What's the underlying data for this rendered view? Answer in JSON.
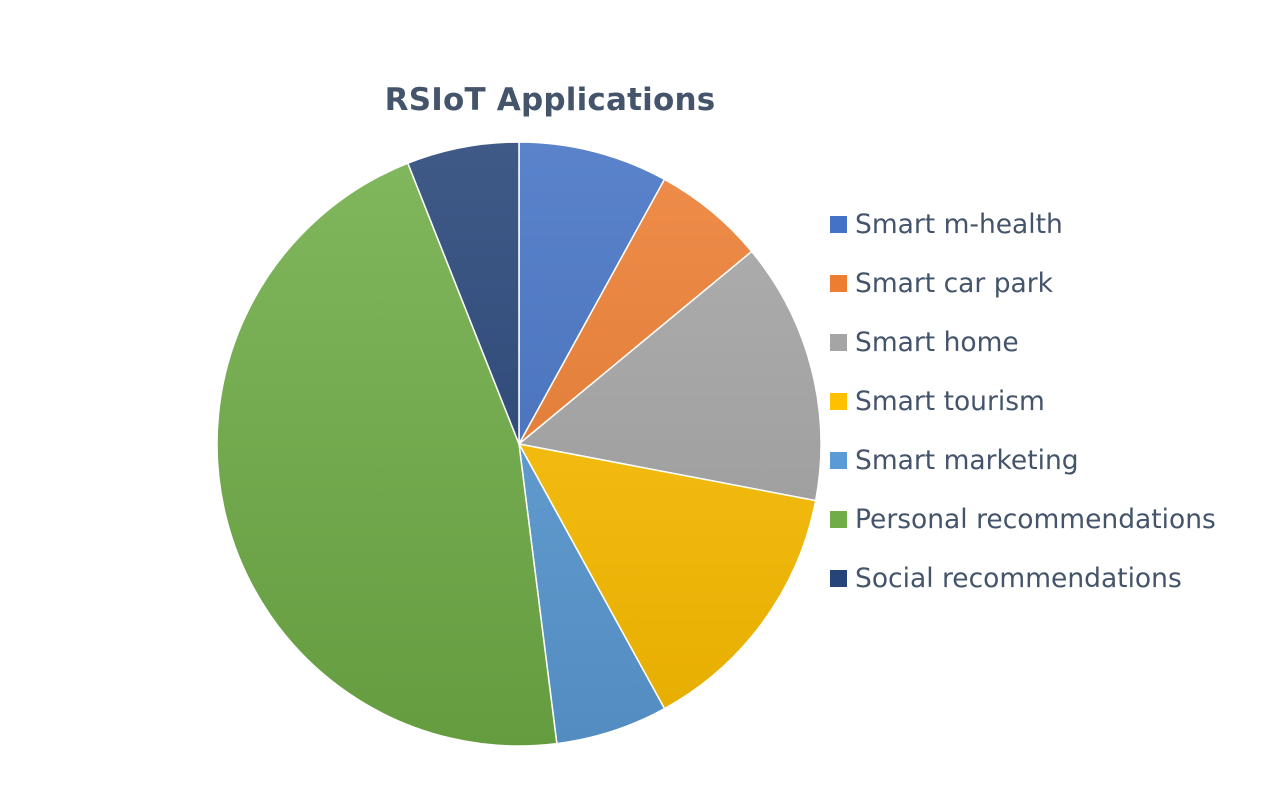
{
  "chart_data": {
    "type": "pie",
    "title": "RSIoT Applications",
    "legend_position": "right",
    "slices": [
      {
        "label": "Smart m-health",
        "value": 8,
        "color": "#4472C4"
      },
      {
        "label": "Smart car park",
        "value": 6,
        "color": "#ED7D31"
      },
      {
        "label": "Smart home",
        "value": 14,
        "color": "#A5A5A5"
      },
      {
        "label": "Smart tourism",
        "value": 14,
        "color": "#FFC000"
      },
      {
        "label": "Smart marketing",
        "value": 6,
        "color": "#5B9BD5"
      },
      {
        "label": "Personal recommendations",
        "value": 46,
        "color": "#70AD47"
      },
      {
        "label": "Social recommendations",
        "value": 6,
        "color": "#264478"
      }
    ]
  }
}
